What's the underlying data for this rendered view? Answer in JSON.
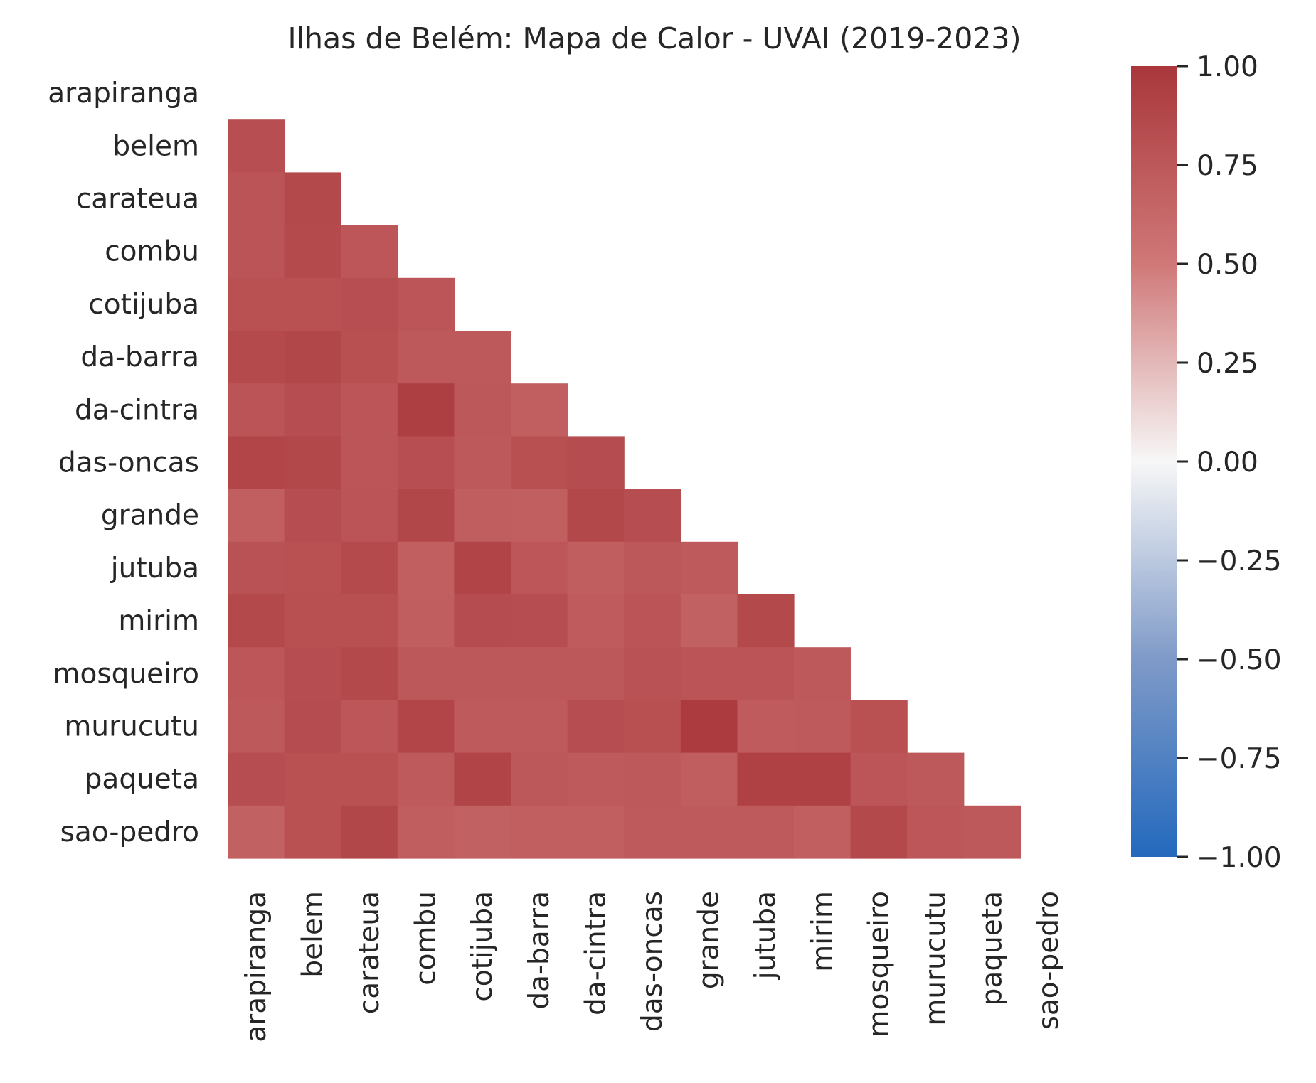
{
  "chart_data": {
    "type": "heatmap",
    "title": "Ilhas de Belém: Mapa de Calor - UVAI (2019-2023)",
    "labels": [
      "arapiranga",
      "belem",
      "carateua",
      "combu",
      "cotijuba",
      "da-barra",
      "da-cintra",
      "das-oncas",
      "grande",
      "jutuba",
      "mirim",
      "mosqueiro",
      "murucutu",
      "paqueta",
      "sao-pedro"
    ],
    "mask": "upper-triangle-and-diagonal",
    "matrix": [
      [],
      [
        0.82
      ],
      [
        0.78,
        0.86
      ],
      [
        0.78,
        0.85,
        0.76
      ],
      [
        0.8,
        0.8,
        0.82,
        0.77
      ],
      [
        0.85,
        0.88,
        0.81,
        0.74,
        0.74
      ],
      [
        0.78,
        0.83,
        0.77,
        0.95,
        0.75,
        0.7
      ],
      [
        0.89,
        0.87,
        0.77,
        0.82,
        0.74,
        0.81,
        0.84
      ],
      [
        0.7,
        0.83,
        0.78,
        0.88,
        0.71,
        0.7,
        0.87,
        0.83
      ],
      [
        0.79,
        0.8,
        0.85,
        0.7,
        0.9,
        0.76,
        0.71,
        0.75,
        0.73
      ],
      [
        0.86,
        0.81,
        0.81,
        0.71,
        0.84,
        0.83,
        0.72,
        0.78,
        0.68,
        0.86
      ],
      [
        0.76,
        0.83,
        0.86,
        0.75,
        0.75,
        0.75,
        0.75,
        0.79,
        0.78,
        0.78,
        0.74
      ],
      [
        0.74,
        0.84,
        0.76,
        0.89,
        0.73,
        0.73,
        0.83,
        0.81,
        0.97,
        0.72,
        0.73,
        0.8
      ],
      [
        0.83,
        0.8,
        0.8,
        0.73,
        0.9,
        0.75,
        0.73,
        0.74,
        0.71,
        0.92,
        0.92,
        0.77,
        0.74
      ],
      [
        0.68,
        0.8,
        0.88,
        0.71,
        0.68,
        0.7,
        0.7,
        0.73,
        0.73,
        0.73,
        0.7,
        0.86,
        0.76,
        0.74
      ]
    ],
    "colorbar": {
      "min": -1.0,
      "max": 1.0,
      "ticks": [
        "1.00",
        "0.75",
        "0.50",
        "0.25",
        "0.00",
        "−0.25",
        "−0.50",
        "−0.75",
        "−1.00"
      ],
      "tick_values": [
        1.0,
        0.75,
        0.5,
        0.25,
        0.0,
        -0.25,
        -0.5,
        -0.75,
        -1.0
      ]
    },
    "colormap": "vlag",
    "grid": false
  }
}
